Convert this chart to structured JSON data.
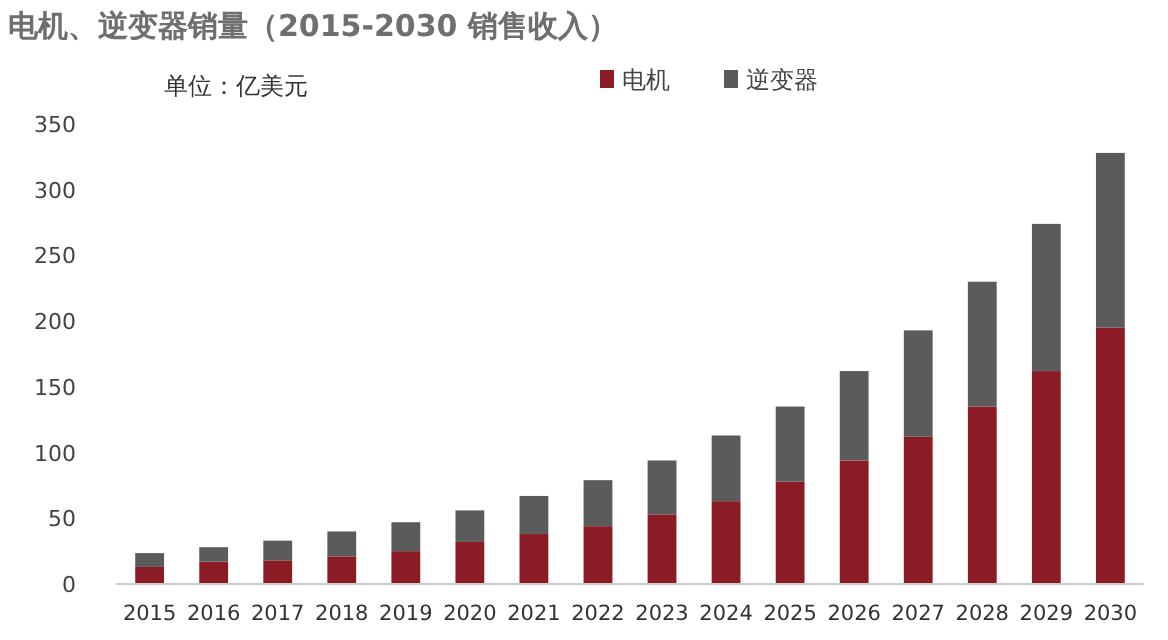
{
  "chart_data": {
    "type": "bar",
    "title": "电机、逆变器销量（2015-2030 销售收入）",
    "ylabel": "单位：亿美元",
    "categories": [
      "2015",
      "2016",
      "2017",
      "2018",
      "2019",
      "2020",
      "2021",
      "2022",
      "2023",
      "2024",
      "2025",
      "2026",
      "2027",
      "2028",
      "2029",
      "2030"
    ],
    "series": [
      {
        "name": "电机",
        "color": "#8b1c26",
        "values": [
          13,
          17,
          18,
          21,
          25,
          32,
          38,
          44,
          53,
          63,
          78,
          94,
          112,
          135,
          162,
          195
        ]
      },
      {
        "name": "逆变器",
        "color": "#5b5b5b",
        "values": [
          10.5,
          11,
          15,
          19,
          22,
          24,
          29,
          35,
          41,
          50,
          57,
          68,
          81,
          95,
          112,
          133
        ]
      }
    ],
    "stacked": true,
    "ylim": [
      0,
      350
    ],
    "yticks": [
      0,
      50,
      100,
      150,
      200,
      250,
      300,
      350
    ],
    "grid": false,
    "legend": "top"
  }
}
